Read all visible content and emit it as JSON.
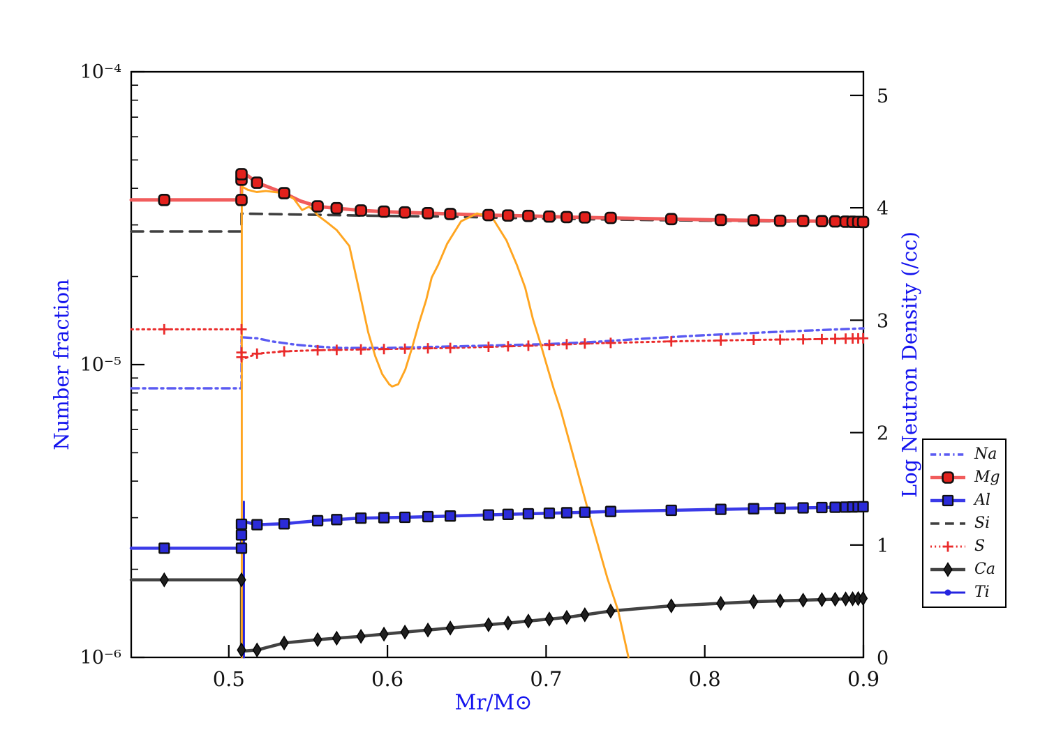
{
  "chart_data": {
    "type": "line",
    "title": "",
    "xlabel": "Mr/M⊙",
    "ylabel_left": "Number fraction",
    "ylabel_right": "Log Neutron Density (/cc)",
    "x_axis": {
      "min": 0.4385,
      "max": 0.9,
      "ticks": [
        {
          "v": 0.5,
          "label": "0.5"
        },
        {
          "v": 0.6,
          "label": "0.6"
        },
        {
          "v": 0.7,
          "label": "0.7"
        },
        {
          "v": 0.8,
          "label": "0.8"
        },
        {
          "v": 0.9,
          "label": "0.9"
        }
      ]
    },
    "y_axis_left": {
      "scale": "log",
      "min": 1e-06,
      "max": 0.0001,
      "ticks": [
        {
          "v": 0.0001,
          "label": "10⁻⁴"
        },
        {
          "v": 1e-05,
          "label": "10⁻⁵"
        },
        {
          "v": 1e-06,
          "label": "10⁻⁶"
        }
      ]
    },
    "y_axis_right": {
      "min": 0,
      "max": 5.21,
      "ticks": [
        {
          "v": 5,
          "label": "5"
        },
        {
          "v": 4,
          "label": "4"
        },
        {
          "v": 3,
          "label": "3"
        },
        {
          "v": 2,
          "label": "2"
        },
        {
          "v": 1,
          "label": "1"
        },
        {
          "v": 0,
          "label": "0"
        }
      ]
    },
    "legend": {
      "position": "outside-right",
      "entries": [
        {
          "series": "na",
          "label": "Na"
        },
        {
          "series": "mg",
          "label": "Mg"
        },
        {
          "series": "al",
          "label": "Al"
        },
        {
          "series": "si",
          "label": "Si"
        },
        {
          "series": "s",
          "label": "S"
        },
        {
          "series": "ca",
          "label": "Ca"
        },
        {
          "series": "ti",
          "label": "Ti"
        }
      ]
    },
    "marker_x": [
      0.4593,
      0.5178,
      0.5349,
      0.556,
      0.568,
      0.5833,
      0.5978,
      0.611,
      0.6255,
      0.6396,
      0.6637,
      0.676,
      0.6888,
      0.702,
      0.713,
      0.7244,
      0.7407,
      0.7789,
      0.8101,
      0.8308,
      0.8475,
      0.862,
      0.8738,
      0.8822,
      0.8888,
      0.8932,
      0.8967,
      0.8998
    ],
    "series": [
      {
        "id": "na",
        "label": "Na",
        "axis": "left",
        "color": "#5A5AF2",
        "points": [
          [
            0.4385,
            8.3e-06
          ],
          [
            0.508,
            8.3e-06
          ],
          [
            0.508,
            1.24e-05
          ],
          [
            0.5178,
            1.23e-05
          ],
          [
            0.527,
            1.2e-05
          ],
          [
            0.542,
            1.17e-05
          ],
          [
            0.553,
            1.155e-05
          ],
          [
            0.57,
            1.14e-05
          ],
          [
            0.6,
            1.14e-05
          ],
          [
            0.63,
            1.15e-05
          ],
          [
            0.66,
            1.16e-05
          ],
          [
            0.7,
            1.175e-05
          ],
          [
            0.73,
            1.195e-05
          ],
          [
            0.76,
            1.225e-05
          ],
          [
            0.8,
            1.26e-05
          ],
          [
            0.84,
            1.29e-05
          ],
          [
            0.87,
            1.31e-05
          ],
          [
            0.9,
            1.33e-05
          ]
        ]
      },
      {
        "id": "mg",
        "label": "Mg",
        "axis": "left",
        "color": "#F15C5C",
        "marker_color": "#E3211C",
        "points": [
          [
            0.4385,
            3.65e-05
          ],
          [
            0.508,
            3.65e-05
          ],
          [
            0.508,
            4.6e-05
          ],
          [
            0.51,
            4.5e-05
          ],
          [
            0.5178,
            4.18e-05
          ],
          [
            0.527,
            4e-05
          ],
          [
            0.5349,
            3.85e-05
          ],
          [
            0.545,
            3.62e-05
          ],
          [
            0.556,
            3.47e-05
          ],
          [
            0.568,
            3.42e-05
          ],
          [
            0.5833,
            3.36e-05
          ],
          [
            0.5978,
            3.33e-05
          ],
          [
            0.611,
            3.31e-05
          ],
          [
            0.6255,
            3.29e-05
          ],
          [
            0.6396,
            3.27e-05
          ],
          [
            0.6637,
            3.24e-05
          ],
          [
            0.6888,
            3.22e-05
          ],
          [
            0.713,
            3.19e-05
          ],
          [
            0.7407,
            3.17e-05
          ],
          [
            0.7789,
            3.14e-05
          ],
          [
            0.8101,
            3.12e-05
          ],
          [
            0.8475,
            3.1e-05
          ],
          [
            0.8738,
            3.09e-05
          ],
          [
            0.9,
            3.07e-05
          ]
        ],
        "marker_extra": [
          [
            0.508,
            3.65e-05
          ],
          [
            0.508,
            4.28e-05
          ],
          [
            0.508,
            4.47e-05
          ]
        ]
      },
      {
        "id": "al",
        "label": "Al",
        "axis": "left",
        "color": "#3A3AE8",
        "marker_color": "#2B2BD8",
        "points": [
          [
            0.4385,
            2.36e-06
          ],
          [
            0.508,
            2.36e-06
          ],
          [
            0.508,
            2.92e-06
          ],
          [
            0.5178,
            2.84e-06
          ],
          [
            0.5349,
            2.86e-06
          ],
          [
            0.556,
            2.93e-06
          ],
          [
            0.5833,
            2.99e-06
          ],
          [
            0.611,
            3.01e-06
          ],
          [
            0.6396,
            3.04e-06
          ],
          [
            0.676,
            3.08e-06
          ],
          [
            0.713,
            3.12e-06
          ],
          [
            0.7407,
            3.15e-06
          ],
          [
            0.7789,
            3.18e-06
          ],
          [
            0.8308,
            3.22e-06
          ],
          [
            0.8738,
            3.25e-06
          ],
          [
            0.9,
            3.27e-06
          ]
        ],
        "marker_extra": [
          [
            0.508,
            2.36e-06
          ],
          [
            0.508,
            2.62e-06
          ],
          [
            0.508,
            2.85e-06
          ]
        ]
      },
      {
        "id": "si",
        "label": "Si",
        "axis": "left",
        "color": "#3F3F3F",
        "points": [
          [
            0.4385,
            2.85e-05
          ],
          [
            0.508,
            2.85e-05
          ],
          [
            0.508,
            3.28e-05
          ],
          [
            0.5349,
            3.26e-05
          ],
          [
            0.568,
            3.24e-05
          ],
          [
            0.5978,
            3.22e-05
          ],
          [
            0.6396,
            3.2e-05
          ],
          [
            0.6888,
            3.16e-05
          ],
          [
            0.7407,
            3.13e-05
          ],
          [
            0.7789,
            3.11e-05
          ],
          [
            0.8308,
            3.09e-05
          ],
          [
            0.8738,
            3.07e-05
          ],
          [
            0.9,
            3.06e-05
          ]
        ]
      },
      {
        "id": "s",
        "label": "S",
        "axis": "left",
        "color": "#EA2A2A",
        "marker_color": "#EA2A2A",
        "points": [
          [
            0.4385,
            1.32e-05
          ],
          [
            0.508,
            1.32e-05
          ],
          [
            0.508,
            1.04e-05
          ],
          [
            0.5178,
            1.09e-05
          ],
          [
            0.5349,
            1.11e-05
          ],
          [
            0.556,
            1.12e-05
          ],
          [
            0.5978,
            1.13e-05
          ],
          [
            0.6396,
            1.14e-05
          ],
          [
            0.6888,
            1.16e-05
          ],
          [
            0.7244,
            1.18e-05
          ],
          [
            0.7789,
            1.2e-05
          ],
          [
            0.8308,
            1.215e-05
          ],
          [
            0.8738,
            1.222e-05
          ],
          [
            0.9,
            1.23e-05
          ]
        ],
        "marker_extra": [
          [
            0.508,
            1.32e-05
          ],
          [
            0.508,
            1.1e-05
          ],
          [
            0.508,
            1.06e-05
          ]
        ]
      },
      {
        "id": "ca",
        "label": "Ca",
        "axis": "left",
        "color": "#424242",
        "marker_color": "#1F1F1F",
        "points": [
          [
            0.4385,
            1.84e-06
          ],
          [
            0.508,
            1.84e-06
          ],
          [
            0.508,
            1.05e-06
          ],
          [
            0.5178,
            1.06e-06
          ],
          [
            0.5349,
            1.12e-06
          ],
          [
            0.556,
            1.15e-06
          ],
          [
            0.5833,
            1.18e-06
          ],
          [
            0.611,
            1.22e-06
          ],
          [
            0.6396,
            1.26e-06
          ],
          [
            0.676,
            1.31e-06
          ],
          [
            0.713,
            1.37e-06
          ],
          [
            0.7407,
            1.44e-06
          ],
          [
            0.7789,
            1.5e-06
          ],
          [
            0.8308,
            1.55e-06
          ],
          [
            0.8738,
            1.575e-06
          ],
          [
            0.9,
            1.59e-06
          ]
        ],
        "marker_extra": [
          [
            0.508,
            1.84e-06
          ],
          [
            0.508,
            1.06e-06
          ]
        ]
      },
      {
        "id": "ti",
        "label": "Ti",
        "axis": "left",
        "color": "#2525E0",
        "marker_color": "#2525E0",
        "points": [
          [
            0.5095,
            1e-06
          ],
          [
            0.5095,
            3.4e-06
          ]
        ]
      },
      {
        "id": "neutron_density",
        "label": "",
        "axis": "right",
        "color": "#FFA520",
        "points": [
          [
            0.5082,
            0.0
          ],
          [
            0.5082,
            4.19
          ],
          [
            0.512,
            4.16
          ],
          [
            0.5176,
            4.14
          ],
          [
            0.5233,
            4.15
          ],
          [
            0.529,
            4.14
          ],
          [
            0.5352,
            4.13
          ],
          [
            0.541,
            4.08
          ],
          [
            0.5462,
            3.98
          ],
          [
            0.5505,
            4.01
          ],
          [
            0.554,
            3.97
          ],
          [
            0.5563,
            3.93
          ],
          [
            0.5629,
            3.86
          ],
          [
            0.5681,
            3.8
          ],
          [
            0.576,
            3.66
          ],
          [
            0.5818,
            3.29
          ],
          [
            0.5879,
            2.89
          ],
          [
            0.5923,
            2.68
          ],
          [
            0.5967,
            2.52
          ],
          [
            0.6011,
            2.43
          ],
          [
            0.6029,
            2.41
          ],
          [
            0.6068,
            2.43
          ],
          [
            0.6112,
            2.56
          ],
          [
            0.6156,
            2.76
          ],
          [
            0.62,
            2.98
          ],
          [
            0.6244,
            3.18
          ],
          [
            0.6279,
            3.38
          ],
          [
            0.6319,
            3.49
          ],
          [
            0.6376,
            3.68
          ],
          [
            0.6464,
            3.88
          ],
          [
            0.6565,
            3.95
          ],
          [
            0.6662,
            3.91
          ],
          [
            0.675,
            3.71
          ],
          [
            0.6816,
            3.49
          ],
          [
            0.6868,
            3.29
          ],
          [
            0.6917,
            3.01
          ],
          [
            0.6961,
            2.81
          ],
          [
            0.7004,
            2.6
          ],
          [
            0.7048,
            2.39
          ],
          [
            0.7092,
            2.2
          ],
          [
            0.7123,
            2.04
          ],
          [
            0.7189,
            1.7
          ],
          [
            0.7268,
            1.29
          ],
          [
            0.7387,
            0.7
          ],
          [
            0.7453,
            0.42
          ],
          [
            0.7519,
            0.0
          ]
        ]
      }
    ]
  }
}
